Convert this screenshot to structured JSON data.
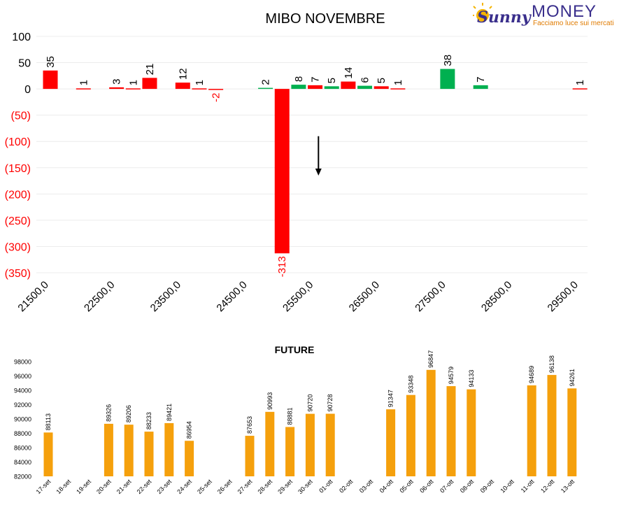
{
  "logo": {
    "word1": "Sunny",
    "word2": "MONEY",
    "tagline": "Facciamo luce sui mercati"
  },
  "colors": {
    "positive": "#00b050",
    "negative": "#ff0000",
    "future": "#f5a00c",
    "text": "#000000"
  },
  "chart_data": [
    {
      "type": "bar",
      "title": "MIBO NOVEMBRE",
      "ylim": [
        -350,
        100
      ],
      "yticks": [
        {
          "value": 100,
          "label": "100"
        },
        {
          "value": 50,
          "label": "50"
        },
        {
          "value": 0,
          "label": "0"
        },
        {
          "value": -50,
          "label": "(50)"
        },
        {
          "value": -100,
          "label": "(100)"
        },
        {
          "value": -150,
          "label": "(150)"
        },
        {
          "value": -200,
          "label": "(200)"
        },
        {
          "value": -250,
          "label": "(250)"
        },
        {
          "value": -300,
          "label": "(300)"
        },
        {
          "value": -350,
          "label": "(350)"
        }
      ],
      "xlim": [
        21500,
        29900
      ],
      "xticks": [
        "21500,0",
        "22500,0",
        "23500,0",
        "24500,0",
        "25500,0",
        "26500,0",
        "27500,0",
        "28500,0",
        "29500,0"
      ],
      "xtick_values": [
        21500,
        22500,
        23500,
        24500,
        25500,
        26500,
        27500,
        28500,
        29500
      ],
      "series": [
        {
          "values": [
            {
              "x": 21500,
              "y": 35,
              "color": "red"
            },
            {
              "x": 22000,
              "y": 1,
              "color": "red"
            },
            {
              "x": 22500,
              "y": 3,
              "color": "red"
            },
            {
              "x": 22750,
              "y": 1,
              "color": "red"
            },
            {
              "x": 23000,
              "y": 21,
              "color": "red"
            },
            {
              "x": 23500,
              "y": 12,
              "color": "red"
            },
            {
              "x": 23750,
              "y": 1,
              "color": "red"
            },
            {
              "x": 24000,
              "y": -2,
              "color": "red"
            },
            {
              "x": 24750,
              "y": 2,
              "color": "green"
            },
            {
              "x": 25000,
              "y": -313,
              "color": "red"
            },
            {
              "x": 25250,
              "y": 8,
              "color": "green"
            },
            {
              "x": 25500,
              "y": 7,
              "color": "red"
            },
            {
              "x": 25750,
              "y": 5,
              "color": "green"
            },
            {
              "x": 26000,
              "y": 14,
              "color": "red"
            },
            {
              "x": 26250,
              "y": 6,
              "color": "green"
            },
            {
              "x": 26500,
              "y": 5,
              "color": "red"
            },
            {
              "x": 26750,
              "y": 1,
              "color": "red"
            },
            {
              "x": 27500,
              "y": 38,
              "color": "green"
            },
            {
              "x": 28000,
              "y": 7,
              "color": "green"
            },
            {
              "x": 29500,
              "y": 1,
              "color": "red"
            }
          ]
        }
      ],
      "annotation": {
        "type": "arrow",
        "direction": "down",
        "x": 25550,
        "y_from": -90,
        "y_to": -165
      }
    },
    {
      "type": "bar",
      "title": "FUTURE",
      "ylim": [
        82000,
        98000
      ],
      "yticks": [
        82000,
        84000,
        86000,
        88000,
        90000,
        92000,
        94000,
        96000,
        98000
      ],
      "categories": [
        "17-set",
        "18-set",
        "19-set",
        "20-set",
        "21-set",
        "22-set",
        "23-set",
        "24-set",
        "25-set",
        "26-set",
        "27-set",
        "28-set",
        "29-set",
        "30-set",
        "01-ott",
        "02-ott",
        "03-ott",
        "04-ott",
        "05-ott",
        "06-ott",
        "07-ott",
        "08-ott",
        "09-ott",
        "10-ott",
        "11-ott",
        "12-ott",
        "13-ott"
      ],
      "values": [
        88113,
        null,
        null,
        89326,
        89206,
        88233,
        89421,
        86954,
        null,
        null,
        87653,
        90993,
        88881,
        90720,
        90728,
        null,
        null,
        91347,
        93348,
        96847,
        94579,
        94133,
        null,
        null,
        94689,
        96138,
        94261
      ]
    }
  ]
}
